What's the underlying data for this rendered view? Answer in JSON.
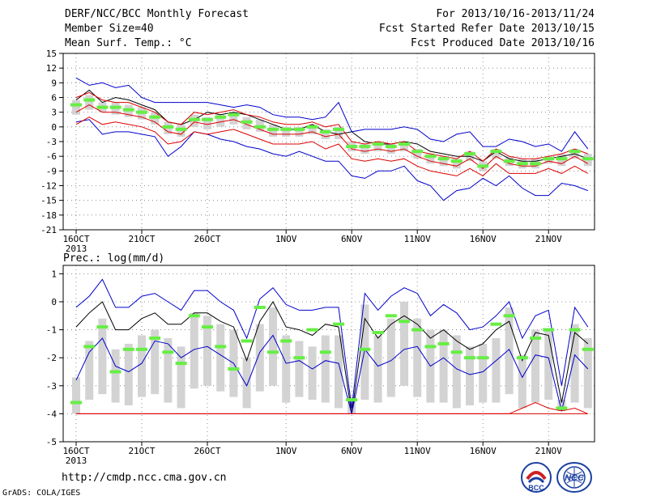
{
  "header": {
    "title": "DERF/NCC/BCC Monthly Forecast",
    "member_size": "Member Size=40",
    "variable": "Mean Surf. Temp.: °C",
    "period": "For 2013/10/16-2013/11/24",
    "started": "Fcst Started Refer Date 2013/10/15",
    "produced": "Fcst Produced Date 2013/10/16"
  },
  "footer": {
    "url": "http://cmdp.ncc.cma.gov.cn",
    "grads": "GrADS: COLA/IGES"
  },
  "logos": {
    "left": "BCC",
    "right": "NCC"
  },
  "colors": {
    "ensemble_mean": "#000000",
    "member_range": "#0000cc",
    "spread": "#dd0000",
    "box": "#d3d3d3",
    "median": "#66ee44"
  },
  "chart_data": [
    {
      "type": "box-line",
      "title": "",
      "ylabel": "",
      "ylim": [
        -21,
        15
      ],
      "yticks": [
        15,
        12,
        9,
        6,
        3,
        0,
        -3,
        -6,
        -9,
        -12,
        -15,
        -18,
        -21
      ],
      "xticks": [
        {
          "day": 0,
          "label": "16OCT"
        },
        {
          "day": 5,
          "label": "21OCT"
        },
        {
          "day": 10,
          "label": "26OCT"
        },
        {
          "day": 16,
          "label": "1NOV"
        },
        {
          "day": 21,
          "label": "6NOV"
        },
        {
          "day": 26,
          "label": "11NOV"
        },
        {
          "day": 31,
          "label": "16NOV"
        },
        {
          "day": 36,
          "label": "21NOV"
        }
      ],
      "year_label": "2013",
      "series": [
        {
          "values": [
            5.5,
            7.5,
            5.0,
            6.0,
            5.5,
            4.5,
            3.5,
            1.0,
            0.5,
            1.5,
            3.0,
            2.5,
            3.0,
            2.5,
            1.5,
            0.5,
            -0.5,
            -0.5,
            0.5,
            -1.0,
            -1.5,
            -1.0,
            -3.0,
            -3.5,
            -3.5,
            -3.0,
            -3.5,
            -5.0,
            -5.5,
            -6.0,
            -6.0,
            -7.0,
            -5.0,
            -6.5,
            -7.0,
            -7.0,
            -6.5,
            -6.0,
            -5.5,
            -6.5
          ]
        },
        {
          "values": [
            10.0,
            8.5,
            9.0,
            8.0,
            8.5,
            6.0,
            5.0,
            5.0,
            5.0,
            5.0,
            5.0,
            4.5,
            4.0,
            4.5,
            4.0,
            2.5,
            2.0,
            2.0,
            1.5,
            2.0,
            5.0,
            -1.0,
            -0.5,
            -0.5,
            -0.5,
            0.0,
            -0.5,
            -2.5,
            -3.0,
            -1.5,
            -1.0,
            -4.0,
            -4.0,
            -2.5,
            -3.0,
            -4.0,
            -3.5,
            -5.0,
            -1.0,
            -4.5
          ]
        },
        {
          "values": [
            1.0,
            1.5,
            -1.5,
            -1.0,
            -1.0,
            -1.5,
            -2.0,
            -6.0,
            -4.0,
            -1.0,
            -1.5,
            -2.5,
            -3.0,
            -4.0,
            -4.5,
            -5.5,
            -6.0,
            -5.0,
            -6.0,
            -7.0,
            -7.0,
            -10.0,
            -10.5,
            -9.0,
            -9.0,
            -8.0,
            -11.0,
            -12.0,
            -15.0,
            -13.0,
            -12.5,
            -10.5,
            -12.0,
            -10.0,
            -12.5,
            -14.0,
            -14.0,
            -11.5,
            -12.0,
            -13.0
          ]
        },
        {
          "values": [
            6.0,
            7.0,
            5.5,
            5.0,
            5.0,
            4.0,
            3.0,
            1.0,
            0.5,
            3.0,
            2.5,
            3.0,
            3.5,
            2.5,
            2.0,
            1.0,
            0.5,
            0.5,
            1.0,
            0.0,
            0.5,
            -3.0,
            -3.5,
            -3.0,
            -3.5,
            -3.0,
            -5.0,
            -5.5,
            -6.0,
            -6.5,
            -5.0,
            -7.0,
            -4.5,
            -6.0,
            -6.5,
            -6.5,
            -6.0,
            -5.5,
            -4.5,
            -5.5
          ]
        },
        {
          "values": [
            3.0,
            4.5,
            3.0,
            3.0,
            2.5,
            2.0,
            1.0,
            -1.0,
            -1.5,
            1.0,
            0.5,
            1.0,
            1.5,
            0.5,
            -0.5,
            -1.5,
            -1.5,
            -1.5,
            -1.0,
            -2.0,
            -1.5,
            -4.5,
            -5.0,
            -4.5,
            -5.0,
            -4.5,
            -6.0,
            -7.0,
            -7.5,
            -8.0,
            -6.5,
            -8.5,
            -6.0,
            -7.5,
            -8.0,
            -8.0,
            -7.0,
            -7.5,
            -6.0,
            -7.5
          ]
        },
        {
          "values": [
            0.5,
            2.0,
            0.5,
            1.0,
            0.5,
            0.0,
            -1.0,
            -3.5,
            -3.0,
            -1.0,
            -1.5,
            -1.0,
            -0.5,
            -1.5,
            -2.5,
            -3.5,
            -3.5,
            -3.5,
            -3.0,
            -4.5,
            -3.5,
            -6.5,
            -7.0,
            -6.5,
            -7.0,
            -6.5,
            -8.0,
            -9.0,
            -9.5,
            -10.0,
            -8.5,
            -10.0,
            -7.5,
            -9.5,
            -9.5,
            -9.5,
            -8.5,
            -9.5,
            -8.0,
            -9.5
          ]
        }
      ],
      "boxes": {
        "low": [
          2.5,
          3.5,
          3.0,
          2.5,
          2.0,
          1.5,
          0.5,
          -1.5,
          -2.0,
          0.0,
          -0.5,
          0.0,
          0.5,
          -0.5,
          -1.0,
          -2.0,
          -2.0,
          -2.0,
          -1.5,
          -2.5,
          -2.5,
          -5.0,
          -5.5,
          -5.0,
          -5.5,
          -5.0,
          -6.5,
          -7.5,
          -8.0,
          -8.5,
          -7.0,
          -9.0,
          -6.5,
          -8.0,
          -8.5,
          -8.5,
          -7.5,
          -8.0,
          -6.5,
          -8.0
        ],
        "high": [
          5.5,
          6.5,
          5.0,
          5.0,
          4.5,
          4.0,
          3.0,
          1.0,
          0.5,
          2.5,
          2.0,
          2.5,
          3.0,
          2.0,
          1.5,
          0.5,
          0.0,
          0.0,
          0.5,
          -0.5,
          0.0,
          -3.0,
          -3.5,
          -3.0,
          -3.5,
          -3.0,
          -4.5,
          -5.5,
          -6.0,
          -6.5,
          -5.0,
          -7.0,
          -4.5,
          -6.0,
          -6.5,
          -6.5,
          -6.0,
          -5.5,
          -4.5,
          -5.5
        ],
        "median": [
          4.5,
          5.5,
          4.0,
          4.0,
          3.5,
          3.0,
          2.0,
          0.0,
          -0.5,
          1.5,
          1.5,
          2.0,
          2.5,
          1.0,
          0.0,
          -0.5,
          -0.5,
          -0.5,
          0.0,
          -1.0,
          -0.5,
          -4.0,
          -4.0,
          -3.5,
          -4.0,
          -3.5,
          -5.0,
          -6.0,
          -6.5,
          -7.0,
          -5.5,
          -8.0,
          -5.0,
          -7.0,
          -7.5,
          -7.5,
          -6.5,
          -6.5,
          -5.0,
          -6.5
        ]
      }
    },
    {
      "type": "box-line",
      "title": "Prec.: log(mm/d)",
      "ylim": [
        -5,
        1.3
      ],
      "yticks": [
        1,
        0,
        -1,
        -2,
        -3,
        -4,
        -5
      ],
      "xticks": [
        {
          "day": 0,
          "label": "16OCT"
        },
        {
          "day": 5,
          "label": "21OCT"
        },
        {
          "day": 10,
          "label": "26OCT"
        },
        {
          "day": 16,
          "label": "1NOV"
        },
        {
          "day": 21,
          "label": "6NOV"
        },
        {
          "day": 26,
          "label": "11NOV"
        },
        {
          "day": 31,
          "label": "16NOV"
        },
        {
          "day": 36,
          "label": "21NOV"
        }
      ],
      "year_label": "2013",
      "series": [
        {
          "values": [
            -0.9,
            -0.4,
            0.0,
            -1.0,
            -1.0,
            -0.6,
            -0.4,
            -0.8,
            -0.8,
            -0.4,
            -0.4,
            -0.7,
            -0.9,
            -2.1,
            -0.7,
            0.0,
            -0.9,
            -1.0,
            -1.2,
            -0.8,
            -0.9,
            -4.0,
            -0.6,
            -1.3,
            -0.8,
            -0.5,
            -0.8,
            -1.3,
            -1.0,
            -1.4,
            -1.7,
            -1.5,
            -1.0,
            -0.7,
            -2.1,
            -1.1,
            -1.2,
            -3.6,
            -1.1,
            -1.5
          ]
        },
        {
          "values": [
            -0.2,
            0.2,
            0.8,
            -0.2,
            -0.2,
            0.2,
            0.3,
            0.0,
            -0.3,
            0.4,
            0.4,
            0.0,
            -0.3,
            -1.3,
            0.1,
            0.5,
            -0.1,
            -0.3,
            -0.3,
            -0.2,
            -0.2,
            -3.8,
            0.3,
            -0.3,
            0.2,
            0.5,
            0.3,
            -0.5,
            -0.1,
            -0.4,
            -1.0,
            -0.9,
            -0.5,
            0.0,
            -1.3,
            -0.5,
            -0.3,
            -3.0,
            -0.2,
            -0.9
          ]
        },
        {
          "values": [
            -2.8,
            -1.8,
            -1.3,
            -2.3,
            -2.5,
            -2.2,
            -1.4,
            -1.5,
            -2.0,
            -1.7,
            -1.6,
            -1.9,
            -2.2,
            -3.0,
            -1.8,
            -1.2,
            -2.2,
            -2.1,
            -2.4,
            -2.1,
            -2.2,
            -4.0,
            -1.7,
            -2.3,
            -2.1,
            -1.7,
            -1.6,
            -2.3,
            -2.0,
            -2.4,
            -2.6,
            -2.5,
            -2.1,
            -1.7,
            -2.7,
            -1.9,
            -2.0,
            -3.9,
            -1.9,
            -2.4
          ]
        },
        {
          "values": [
            -4.0,
            -4.0,
            -4.0,
            -4.0,
            -4.0,
            -4.0,
            -4.0,
            -4.0,
            -4.0,
            -4.0,
            -4.0,
            -4.0,
            -4.0,
            -4.0,
            -4.0,
            -4.0,
            -4.0,
            -4.0,
            -4.0,
            -4.0,
            -4.0,
            -4.0,
            -4.0,
            -4.0,
            -4.0,
            -4.0,
            -4.0,
            -4.0,
            -4.0,
            -4.0,
            -4.0,
            -4.0,
            -4.0,
            -4.0,
            -3.8,
            -3.6,
            -3.8,
            -3.9,
            -3.8,
            -4.0
          ]
        },
        {
          "values": [
            -4.0,
            -4.0,
            -4.0,
            -4.0,
            -4.0,
            -4.0,
            -4.0,
            -4.0,
            -4.0,
            -4.0,
            -4.0,
            -4.0,
            -4.0,
            -4.0,
            -4.0,
            -4.0,
            -4.0,
            -4.0,
            -4.0,
            -4.0,
            -4.0,
            -4.0,
            -4.0,
            -4.0,
            -4.0,
            -4.0,
            -4.0,
            -4.0,
            -4.0,
            -4.0,
            -4.0,
            -4.0,
            -4.0,
            -4.0,
            -4.0,
            -4.0,
            -4.0,
            -4.0,
            -4.0,
            -4.0
          ]
        }
      ],
      "boxes": {
        "low": [
          -4.0,
          -3.5,
          -3.3,
          -3.6,
          -3.7,
          -3.4,
          -3.3,
          -3.6,
          -3.8,
          -3.1,
          -3.0,
          -3.2,
          -3.4,
          -3.8,
          -3.2,
          -3.0,
          -3.6,
          -3.4,
          -3.5,
          -3.6,
          -3.8,
          -4.0,
          -3.5,
          -3.6,
          -3.4,
          -3.0,
          -3.4,
          -3.6,
          -3.6,
          -3.8,
          -3.7,
          -3.6,
          -3.6,
          -3.3,
          -3.8,
          -3.6,
          -3.5,
          -3.9,
          -3.6,
          -3.8
        ],
        "high": [
          -2.7,
          -1.4,
          -0.6,
          -1.7,
          -1.5,
          -1.2,
          -1.0,
          -1.3,
          -1.6,
          -0.4,
          -0.5,
          -0.8,
          -1.0,
          -2.0,
          -0.8,
          -0.2,
          -1.2,
          -1.4,
          -1.6,
          -1.2,
          -1.2,
          -3.4,
          -0.1,
          -1.2,
          -0.6,
          0.0,
          -0.6,
          -1.0,
          -1.0,
          -1.2,
          -1.6,
          -1.5,
          -1.3,
          -0.2,
          -1.9,
          -1.0,
          -1.0,
          -3.5,
          -0.8,
          -1.3
        ],
        "median": [
          -3.6,
          -1.6,
          -0.9,
          -2.5,
          -1.7,
          -1.7,
          -1.3,
          -1.8,
          -2.2,
          -0.5,
          -0.9,
          -1.6,
          -2.4,
          -1.4,
          -0.2,
          -1.8,
          -1.4,
          -2.0,
          -1.0,
          -1.8,
          -0.8,
          -3.5,
          -1.7,
          -1.1,
          -0.5,
          -0.7,
          -1.0,
          -1.6,
          -1.5,
          -1.8,
          -2.0,
          -2.0,
          -0.8,
          -0.5,
          -2.0,
          -1.3,
          -1.0,
          -3.8,
          -1.0,
          -1.7
        ]
      }
    }
  ]
}
